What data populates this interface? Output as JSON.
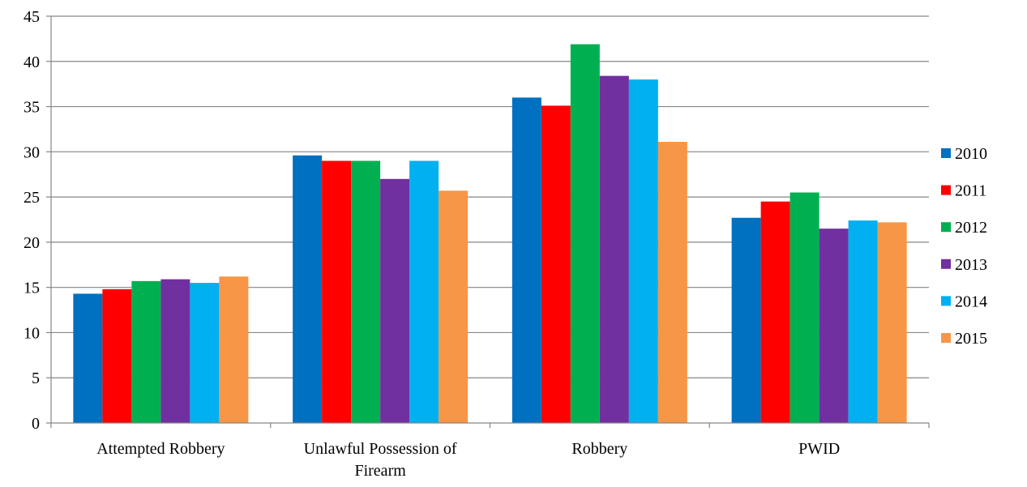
{
  "chart_data": {
    "type": "bar",
    "title": "",
    "xlabel": "",
    "ylabel": "",
    "ylim": [
      0,
      45
    ],
    "yticks": [
      0,
      5,
      10,
      15,
      20,
      25,
      30,
      35,
      40,
      45
    ],
    "grid": true,
    "legend_position": "right",
    "categories": [
      [
        "Attempted Robbery"
      ],
      [
        "Unlawful Possession of",
        "Firearm"
      ],
      [
        "Robbery"
      ],
      [
        "PWID"
      ]
    ],
    "series": [
      {
        "name": "2010",
        "color": "#0070c0",
        "values": [
          14.3,
          29.6,
          36.0,
          22.7
        ]
      },
      {
        "name": "2011",
        "color": "#ff0000",
        "values": [
          14.8,
          29.0,
          35.1,
          24.5
        ]
      },
      {
        "name": "2012",
        "color": "#00b050",
        "values": [
          15.7,
          29.0,
          41.9,
          25.5
        ]
      },
      {
        "name": "2013",
        "color": "#7030a0",
        "values": [
          15.9,
          27.0,
          38.4,
          21.5
        ]
      },
      {
        "name": "2014",
        "color": "#00b0f0",
        "values": [
          15.5,
          29.0,
          38.0,
          22.4
        ]
      },
      {
        "name": "2015",
        "color": "#f79646",
        "values": [
          16.2,
          25.7,
          31.1,
          22.2
        ]
      }
    ]
  }
}
